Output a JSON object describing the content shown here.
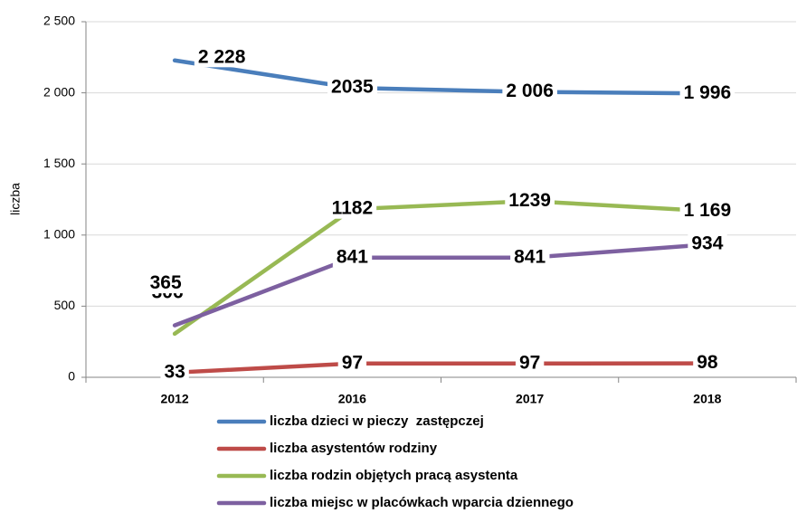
{
  "chart_data": {
    "type": "line",
    "y_label": "liczba",
    "categories": [
      "2012",
      "2016",
      "2017",
      "2018"
    ],
    "ylim": [
      0,
      2500
    ],
    "yticks": [
      0,
      500,
      {
        "value": 1000,
        "label": "1 000"
      },
      {
        "value": 1500,
        "label": "1 500"
      },
      {
        "value": 2000,
        "label": "2 000"
      },
      {
        "value": 2500,
        "label": "2 500"
      }
    ],
    "grid": true,
    "legend": "bottom",
    "series": [
      {
        "name": "liczba dzieci w pieczy  zastępczej",
        "color": "#4a7ebb",
        "label_color": "#1f497d",
        "values": [
          2228,
          2035,
          2006,
          1996
        ],
        "value_labels": [
          "2 228",
          "2035",
          "2 006",
          "1 996"
        ]
      },
      {
        "name": "liczba asystentów rodziny",
        "color": "#be4b48",
        "label_color": "#c00000",
        "values": [
          33,
          97,
          97,
          98
        ],
        "value_labels": [
          "33",
          "97",
          "97",
          "98"
        ]
      },
      {
        "name": "liczba rodzin objętych pracą asystenta",
        "color": "#98b954",
        "label_color": "#4f6228",
        "values": [
          306,
          1182,
          1239,
          1169
        ],
        "value_labels": [
          "306",
          "1182",
          "1239",
          "1 169"
        ]
      },
      {
        "name": "liczba miejsc w placówkach wparcia dziennego",
        "color": "#7d60a0",
        "label_color": "#403152",
        "values": [
          365,
          841,
          841,
          934
        ],
        "value_labels": [
          "365",
          "841",
          "841",
          "934"
        ]
      }
    ]
  }
}
